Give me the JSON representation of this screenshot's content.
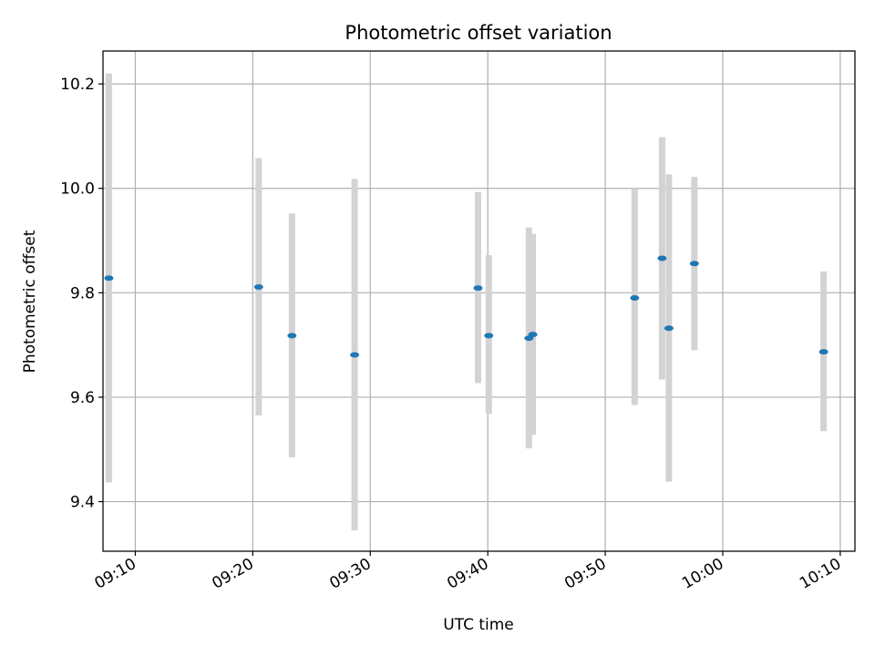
{
  "chart_data": {
    "type": "scatter",
    "title": "Photometric offset variation",
    "xlabel": "UTC time",
    "ylabel": "Photometric offset",
    "xlim": [
      "09:07:15",
      "10:11:15"
    ],
    "ylim": [
      9.305,
      10.263
    ],
    "x_ticks": [
      "09:10",
      "09:20",
      "09:30",
      "09:40",
      "09:50",
      "10:00",
      "10:10"
    ],
    "y_ticks": [
      "9.4",
      "9.6",
      "9.8",
      "10.0",
      "10.2"
    ],
    "grid": true,
    "marker_color": "#1f77b4",
    "errorbar_color": "#d3d3d3",
    "points": [
      {
        "x": "09:07:45",
        "y": 9.828,
        "lower": 9.437,
        "upper": 10.22
      },
      {
        "x": "09:20:30",
        "y": 9.811,
        "lower": 9.565,
        "upper": 10.058
      },
      {
        "x": "09:23:20",
        "y": 9.718,
        "lower": 9.485,
        "upper": 9.952
      },
      {
        "x": "09:28:40",
        "y": 9.681,
        "lower": 9.345,
        "upper": 10.018
      },
      {
        "x": "09:39:10",
        "y": 9.809,
        "lower": 9.627,
        "upper": 9.993
      },
      {
        "x": "09:40:05",
        "y": 9.718,
        "lower": 9.568,
        "upper": 9.872
      },
      {
        "x": "09:43:30",
        "y": 9.713,
        "lower": 9.502,
        "upper": 9.925
      },
      {
        "x": "09:43:50",
        "y": 9.72,
        "lower": 9.528,
        "upper": 9.913
      },
      {
        "x": "09:52:30",
        "y": 9.79,
        "lower": 9.585,
        "upper": 10.0
      },
      {
        "x": "09:54:50",
        "y": 9.866,
        "lower": 9.634,
        "upper": 10.098
      },
      {
        "x": "09:55:25",
        "y": 9.732,
        "lower": 9.438,
        "upper": 10.027
      },
      {
        "x": "09:57:35",
        "y": 9.856,
        "lower": 9.69,
        "upper": 10.022
      },
      {
        "x": "10:08:35",
        "y": 9.687,
        "lower": 9.535,
        "upper": 9.841
      }
    ]
  }
}
